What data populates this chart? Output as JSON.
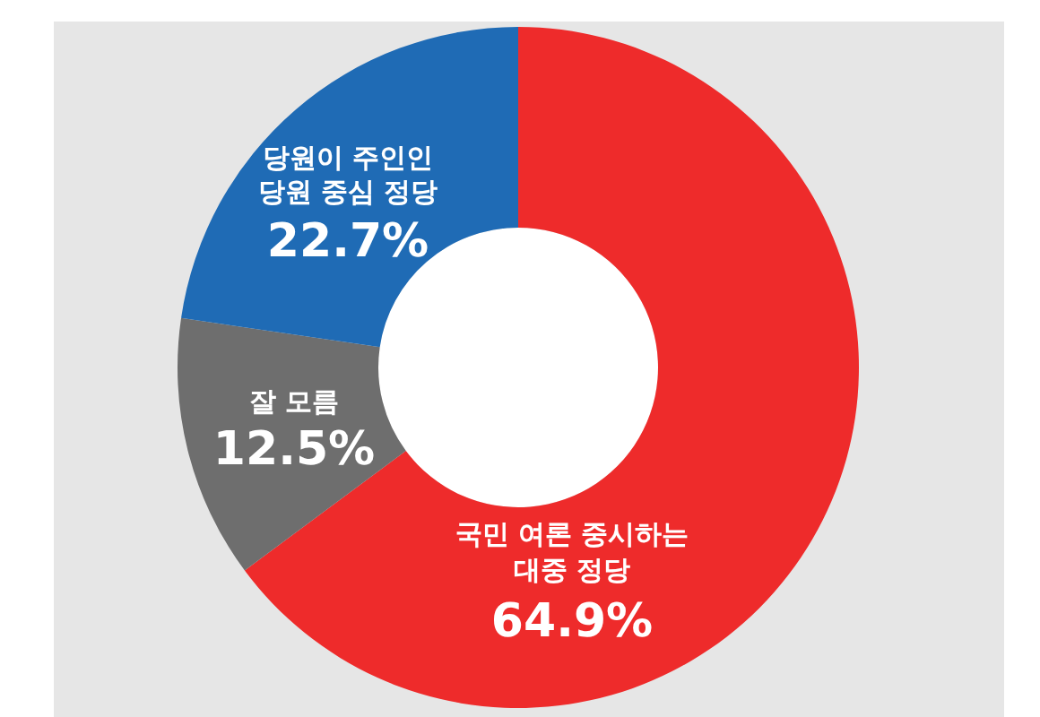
{
  "chart_data": {
    "type": "donut",
    "categories": [
      "국민 여론 중시하는\n대중 정당",
      "잘 모름",
      "당원이 주인인\n당원 중심 정당"
    ],
    "values": [
      64.9,
      12.5,
      22.7
    ],
    "colors": [
      "#ee2b2b",
      "#6e6e6e",
      "#1f6bb5"
    ],
    "value_labels": [
      "64.9%",
      "12.5%",
      "22.7%"
    ]
  }
}
